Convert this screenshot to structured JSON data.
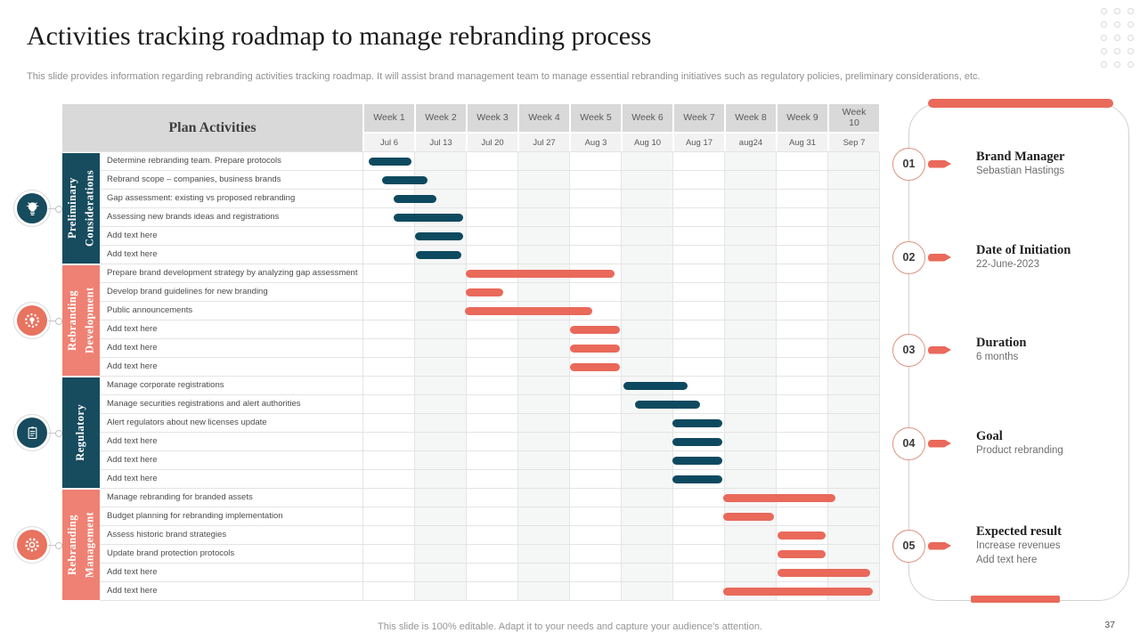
{
  "slide": {
    "title": "Activities tracking roadmap to manage rebranding process",
    "subtitle": "This slide provides information regarding rebranding activities tracking roadmap. It will assist brand management team to manage essential rebranding initiatives such as regulatory policies, preliminary considerations, etc.",
    "footer": "This slide is 100% editable. Adapt it to your needs and capture your audience's attention.",
    "page_number": "37"
  },
  "colors": {
    "teal_bar": "#0e4a5f",
    "teal_band": "#174b5e",
    "salmon_bar": "#e9695a",
    "salmon_band": "#ee8173",
    "salmon_icon": "#e8735f",
    "accent": "#e9695a",
    "header_bg": "#d9d9d9",
    "date_row_bg": "#f2f2f2"
  },
  "table": {
    "corner_label": "Plan Activities",
    "weeks": [
      {
        "label": "Week 1",
        "date": "Jul 6"
      },
      {
        "label": "Week 2",
        "date": "Jul 13"
      },
      {
        "label": "Week 3",
        "date": "Jul 20"
      },
      {
        "label": "Week 4",
        "date": "Jul 27"
      },
      {
        "label": "Week 5",
        "date": "Aug 3"
      },
      {
        "label": "Week 6",
        "date": "Aug 10"
      },
      {
        "label": "Week 7",
        "date": "Aug 17"
      },
      {
        "label": "Week 8",
        "date": "aug24"
      },
      {
        "label": "Week 9",
        "date": "Aug 31"
      },
      {
        "label": "Week 10",
        "date": "Sep 7"
      }
    ]
  },
  "chart_data": {
    "type": "bar",
    "subtype": "gantt",
    "title": "Activities tracking roadmap to manage rebranding process",
    "x_axis": {
      "unit": "weeks",
      "range": [
        0,
        10
      ],
      "labels": [
        "Week 1",
        "Week 2",
        "Week 3",
        "Week 4",
        "Week 5",
        "Week 6",
        "Week 7",
        "Week 8",
        "Week 9",
        "Week 10"
      ],
      "dates": [
        "Jul 6",
        "Jul 13",
        "Jul 20",
        "Jul 27",
        "Aug 3",
        "Aug 10",
        "Aug 17",
        "aug24",
        "Aug 31",
        "Sep 7"
      ]
    },
    "groups": [
      {
        "name": "Preliminary Considerations",
        "bar_color": "#0e4a5f",
        "band_color": "#174b5e",
        "icon": "idea-lightbulb-icon",
        "icon_color": "#174b5e",
        "tasks": [
          {
            "label": "Determine rebranding team. Prepare protocols",
            "start": 0.12,
            "end": 0.95
          },
          {
            "label": "Rebrand scope – companies, business brands",
            "start": 0.38,
            "end": 1.26
          },
          {
            "label": "Gap assessment: existing vs proposed rebranding",
            "start": 0.6,
            "end": 1.43
          },
          {
            "label": "Assessing new brands ideas and registrations",
            "start": 0.6,
            "end": 1.95
          },
          {
            "label": "Add text here",
            "start": 1.02,
            "end": 1.95
          },
          {
            "label": "Add text here",
            "start": 1.03,
            "end": 1.91
          }
        ]
      },
      {
        "name": "Rebranding Development",
        "bar_color": "#e9695a",
        "band_color": "#ee8173",
        "icon": "innovation-gear-bulb-icon",
        "icon_color": "#e8735f",
        "tasks": [
          {
            "label": "Prepare brand development strategy by analyzing gap assessment",
            "start": 2.0,
            "end": 4.88
          },
          {
            "label": "Develop brand guidelines for new branding",
            "start": 2.0,
            "end": 2.72
          },
          {
            "label": "Public announcements",
            "start": 1.98,
            "end": 4.45
          },
          {
            "label": "Add text here",
            "start": 4.02,
            "end": 4.98
          },
          {
            "label": "Add text here",
            "start": 4.02,
            "end": 4.98
          },
          {
            "label": "Add text here",
            "start": 4.02,
            "end": 4.98
          }
        ]
      },
      {
        "name": "Regulatory",
        "bar_color": "#0e4a5f",
        "band_color": "#174b5e",
        "icon": "checklist-clipboard-icon",
        "icon_color": "#174b5e",
        "tasks": [
          {
            "label": "Manage corporate registrations",
            "start": 5.05,
            "end": 6.29
          },
          {
            "label": "Manage securities registrations and alert authorities",
            "start": 5.28,
            "end": 6.53
          },
          {
            "label": "Alert regulators about new licenses update",
            "start": 6.0,
            "end": 6.97
          },
          {
            "label": "Add text here",
            "start": 6.0,
            "end": 6.97
          },
          {
            "label": "Add text here",
            "start": 6.0,
            "end": 6.97
          },
          {
            "label": "Add text here",
            "start": 6.0,
            "end": 6.97
          }
        ]
      },
      {
        "name": "Rebranding Management",
        "bar_color": "#e9695a",
        "band_color": "#ee8173",
        "icon": "settings-gear-icon",
        "icon_color": "#e8735f",
        "tasks": [
          {
            "label": "Manage rebranding for branded assets",
            "start": 6.98,
            "end": 9.16
          },
          {
            "label": "Budget planning for rebranding implementation",
            "start": 6.98,
            "end": 7.97
          },
          {
            "label": "Assess historic brand strategies",
            "start": 8.03,
            "end": 8.97
          },
          {
            "label": "Update brand protection protocols",
            "start": 8.03,
            "end": 8.97
          },
          {
            "label": "Add text here",
            "start": 8.03,
            "end": 9.83
          },
          {
            "label": "Add text here",
            "start": 6.98,
            "end": 9.88
          }
        ]
      }
    ]
  },
  "timeline": {
    "items": [
      {
        "num": "01",
        "title": "Brand Manager",
        "lines": [
          "Sebastian Hastings"
        ]
      },
      {
        "num": "02",
        "title": "Date of Initiation",
        "lines": [
          "22-June-2023"
        ]
      },
      {
        "num": "03",
        "title": "Duration",
        "lines": [
          "6 months"
        ]
      },
      {
        "num": "04",
        "title": "Goal",
        "lines": [
          "Product rebranding"
        ]
      },
      {
        "num": "05",
        "title": "Expected result",
        "lines": [
          "Increase revenues",
          "Add text here"
        ]
      }
    ]
  }
}
